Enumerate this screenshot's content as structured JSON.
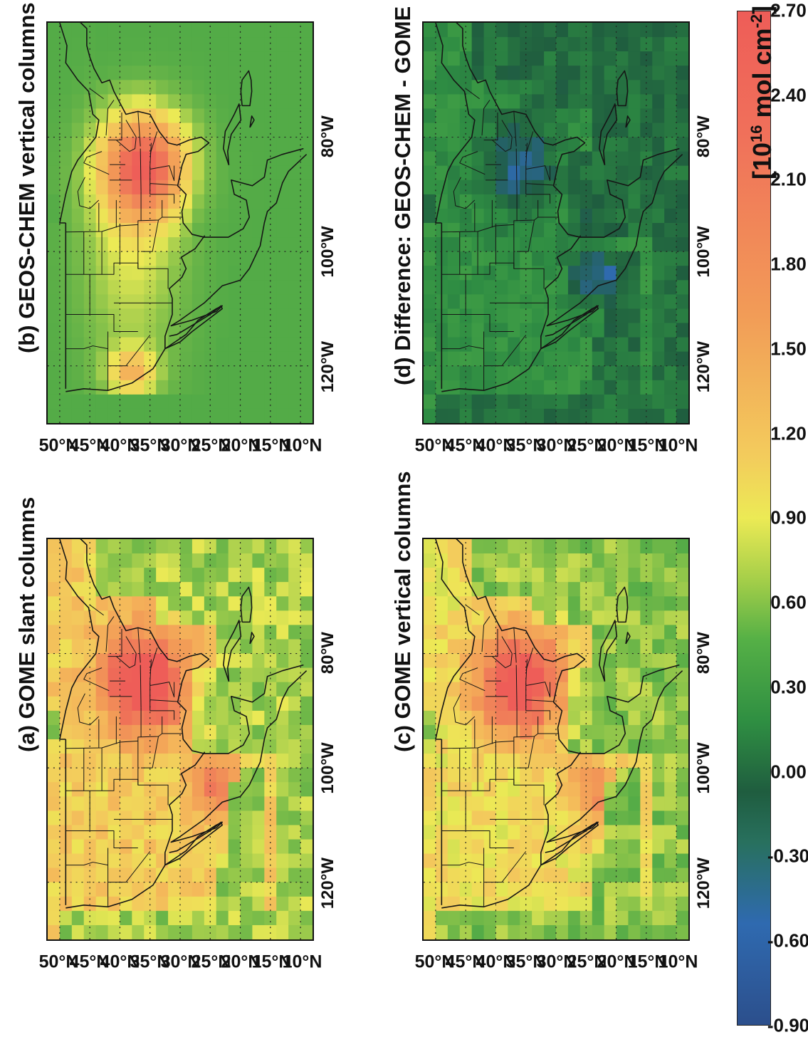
{
  "panels": [
    {
      "id": "a",
      "title": "(a) GOME slant columns",
      "field": "slant"
    },
    {
      "id": "b",
      "title": "(b) GEOS-CHEM vertical columns",
      "field": "model"
    },
    {
      "id": "c",
      "title": "(c) GOME vertical columns",
      "field": "gomev"
    },
    {
      "id": "d",
      "title": "(d) Difference: GEOS-CHEM - GOME",
      "field": "diff"
    }
  ],
  "lat_labels": [
    "50°N",
    "45°N",
    "40°N",
    "35°N",
    "30°N",
    "25°N",
    "20°N",
    "15°N",
    "10°N"
  ],
  "lon_labels": [
    "120°W",
    "100°W",
    "80°W"
  ],
  "colorbar": {
    "ticks": [
      "-0.90",
      "-0.60",
      "-0.30",
      "0.00",
      "0.30",
      "0.60",
      "0.90",
      "1.20",
      "1.50",
      "1.80",
      "2.10",
      "2.40",
      "2.70"
    ],
    "units_base": "[10",
    "units_exp": "16",
    "units_mid": " mol cm",
    "units_exp2": "-2",
    "units_end": "]",
    "range": [
      -0.9,
      2.7
    ]
  },
  "colors": {
    "deep_blue": "#2c4f8c",
    "blue": "#2f6ab0",
    "dark_green": "#1f5d3f",
    "green": "#3f9a45",
    "light_green": "#8cc44a",
    "yellow": "#ecea55",
    "orange": "#f29c57",
    "red": "#ee5d58"
  }
}
